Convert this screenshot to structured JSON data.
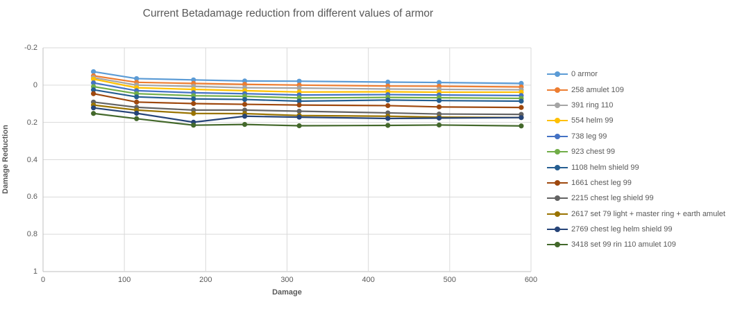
{
  "chart_data": {
    "type": "line",
    "title": "Current Betadamage reduction from different values of armor",
    "xlabel": "Damage",
    "ylabel": "Damage Reduction",
    "xlim": [
      0,
      600
    ],
    "ylim_top_to_bottom": [
      -0.2,
      1
    ],
    "y_axis_inverted": true,
    "grid": true,
    "legend_position": "right",
    "x_ticks": [
      0,
      100,
      200,
      300,
      400,
      500,
      600
    ],
    "y_ticks": [
      -0.2,
      0,
      0.2,
      0.4,
      0.6,
      0.8,
      1
    ],
    "y_tick_labels": [
      "-0.2",
      "0",
      "0.2",
      "0.4",
      "0.6",
      "0.8",
      "1"
    ],
    "x": [
      62,
      115,
      185,
      248,
      315,
      424,
      487,
      588
    ],
    "series": [
      {
        "name": "0 armor",
        "color": "#5B9BD5",
        "values": [
          -0.072,
          -0.035,
          -0.028,
          -0.022,
          -0.021,
          -0.016,
          -0.014,
          -0.009
        ]
      },
      {
        "name": "258 amulet 109",
        "color": "#ED7D31",
        "values": [
          -0.05,
          -0.015,
          -0.009,
          -0.004,
          0.0,
          0.005,
          0.006,
          0.01
        ]
      },
      {
        "name": "391 ring 110",
        "color": "#A5A5A5",
        "values": [
          -0.04,
          0.0,
          0.007,
          0.014,
          0.016,
          0.021,
          0.023,
          0.025
        ]
      },
      {
        "name": "554 helm 99",
        "color": "#FFC000",
        "values": [
          -0.032,
          0.014,
          0.023,
          0.03,
          0.037,
          0.036,
          0.038,
          0.038
        ]
      },
      {
        "name": "738 leg 99",
        "color": "#4472C4",
        "values": [
          -0.012,
          0.03,
          0.041,
          0.046,
          0.053,
          0.051,
          0.053,
          0.056
        ]
      },
      {
        "name": "923 chest 99",
        "color": "#70AD47",
        "values": [
          0.008,
          0.046,
          0.057,
          0.06,
          0.069,
          0.066,
          0.068,
          0.071
        ]
      },
      {
        "name": "1108 helm shield 99",
        "color": "#255E91",
        "values": [
          0.025,
          0.063,
          0.074,
          0.077,
          0.086,
          0.08,
          0.083,
          0.086
        ]
      },
      {
        "name": "1661 chest leg 99",
        "color": "#9E480E",
        "values": [
          0.046,
          0.091,
          0.099,
          0.103,
          0.107,
          0.11,
          0.117,
          0.12
        ]
      },
      {
        "name": "2215 chest leg shield 99",
        "color": "#636363",
        "values": [
          0.091,
          0.119,
          0.134,
          0.134,
          0.14,
          0.149,
          0.155,
          0.157
        ]
      },
      {
        "name": "2617 set 79 light + master ring + earth amulet",
        "color": "#997300",
        "values": [
          0.107,
          0.134,
          0.152,
          0.153,
          0.163,
          0.167,
          0.172,
          0.174
        ]
      },
      {
        "name": "2769 chest leg helm shield 99",
        "color": "#264478",
        "values": [
          0.122,
          0.151,
          0.199,
          0.167,
          0.172,
          0.179,
          0.177,
          0.174
        ]
      },
      {
        "name": "3418 set 99 rin 110 amulet 109",
        "color": "#43682B",
        "values": [
          0.152,
          0.18,
          0.215,
          0.211,
          0.218,
          0.216,
          0.214,
          0.219
        ]
      }
    ],
    "colors": {
      "gridline": "#D9D9D9",
      "axis_line": "#BFBFBF",
      "text": "#595959"
    }
  }
}
